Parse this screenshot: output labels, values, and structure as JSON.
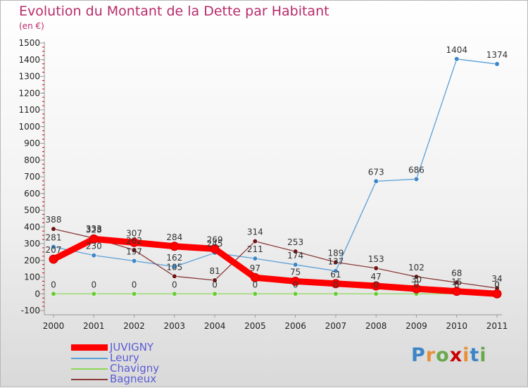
{
  "title": "Evolution du Montant de la Dette par Habitant",
  "subtitle": "(en €)",
  "brand": "Proxiti",
  "chart_data": {
    "type": "line",
    "x": [
      "2000",
      "2001",
      "2002",
      "2003",
      "2004",
      "2005",
      "2006",
      "2007",
      "2008",
      "2009",
      "2010",
      "2011"
    ],
    "y_ticks": [
      -100,
      0,
      100,
      200,
      300,
      400,
      500,
      600,
      700,
      800,
      900,
      1000,
      1100,
      1200,
      1300,
      1400,
      1500
    ],
    "ylim": [
      -100,
      1500
    ],
    "grid": false,
    "legend_position": "bottom-left",
    "series": [
      {
        "name": "JUVIGNY",
        "color": "#ff0000",
        "emphasis": true,
        "values": [
          207,
          328,
          307,
          284,
          269,
          97,
          75,
          61,
          47,
          30,
          15,
          0
        ]
      },
      {
        "name": "Leury",
        "color": "#5aa0d8",
        "marker": "#3d85c6",
        "values": [
          281,
          230,
          197,
          162,
          245,
          211,
          174,
          137,
          673,
          686,
          1404,
          1374
        ]
      },
      {
        "name": "Chavigny",
        "color": "#8ed85a",
        "marker": "#66cc33",
        "values": [
          0,
          0,
          0,
          0,
          0,
          0,
          0,
          0,
          0,
          0,
          0,
          0
        ]
      },
      {
        "name": "Bagneux",
        "color": "#8b3a3a",
        "marker": "#6b1414",
        "values": [
          388,
          333,
          262,
          105,
          81,
          314,
          253,
          189,
          153,
          102,
          68,
          34
        ]
      }
    ]
  }
}
